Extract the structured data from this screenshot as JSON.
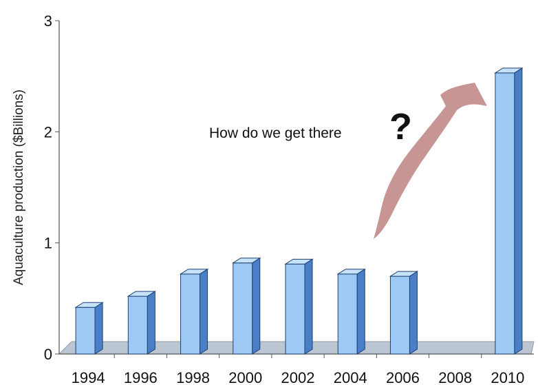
{
  "chart_data": {
    "type": "bar",
    "categories": [
      "1994",
      "1996",
      "1998",
      "2000",
      "2002",
      "2004",
      "2006",
      "2008",
      "2010"
    ],
    "values": [
      0.42,
      0.52,
      0.72,
      0.82,
      0.81,
      0.72,
      0.7,
      null,
      2.53
    ],
    "title": "",
    "xlabel": "",
    "ylabel": "Aquaculture production ($Billions)",
    "ylim": [
      0,
      3
    ],
    "yticks": [
      "0",
      "1",
      "2",
      "3"
    ],
    "grid": false,
    "annotation": {
      "text": "How do we get there",
      "mark": "?",
      "arrow_color": "#c28a8a"
    },
    "colors": {
      "bar_face": "#9ec9f5",
      "bar_side": "#4a7fc8",
      "bar_top": "#c7e2fb",
      "floor": "#bcc6d2"
    }
  }
}
